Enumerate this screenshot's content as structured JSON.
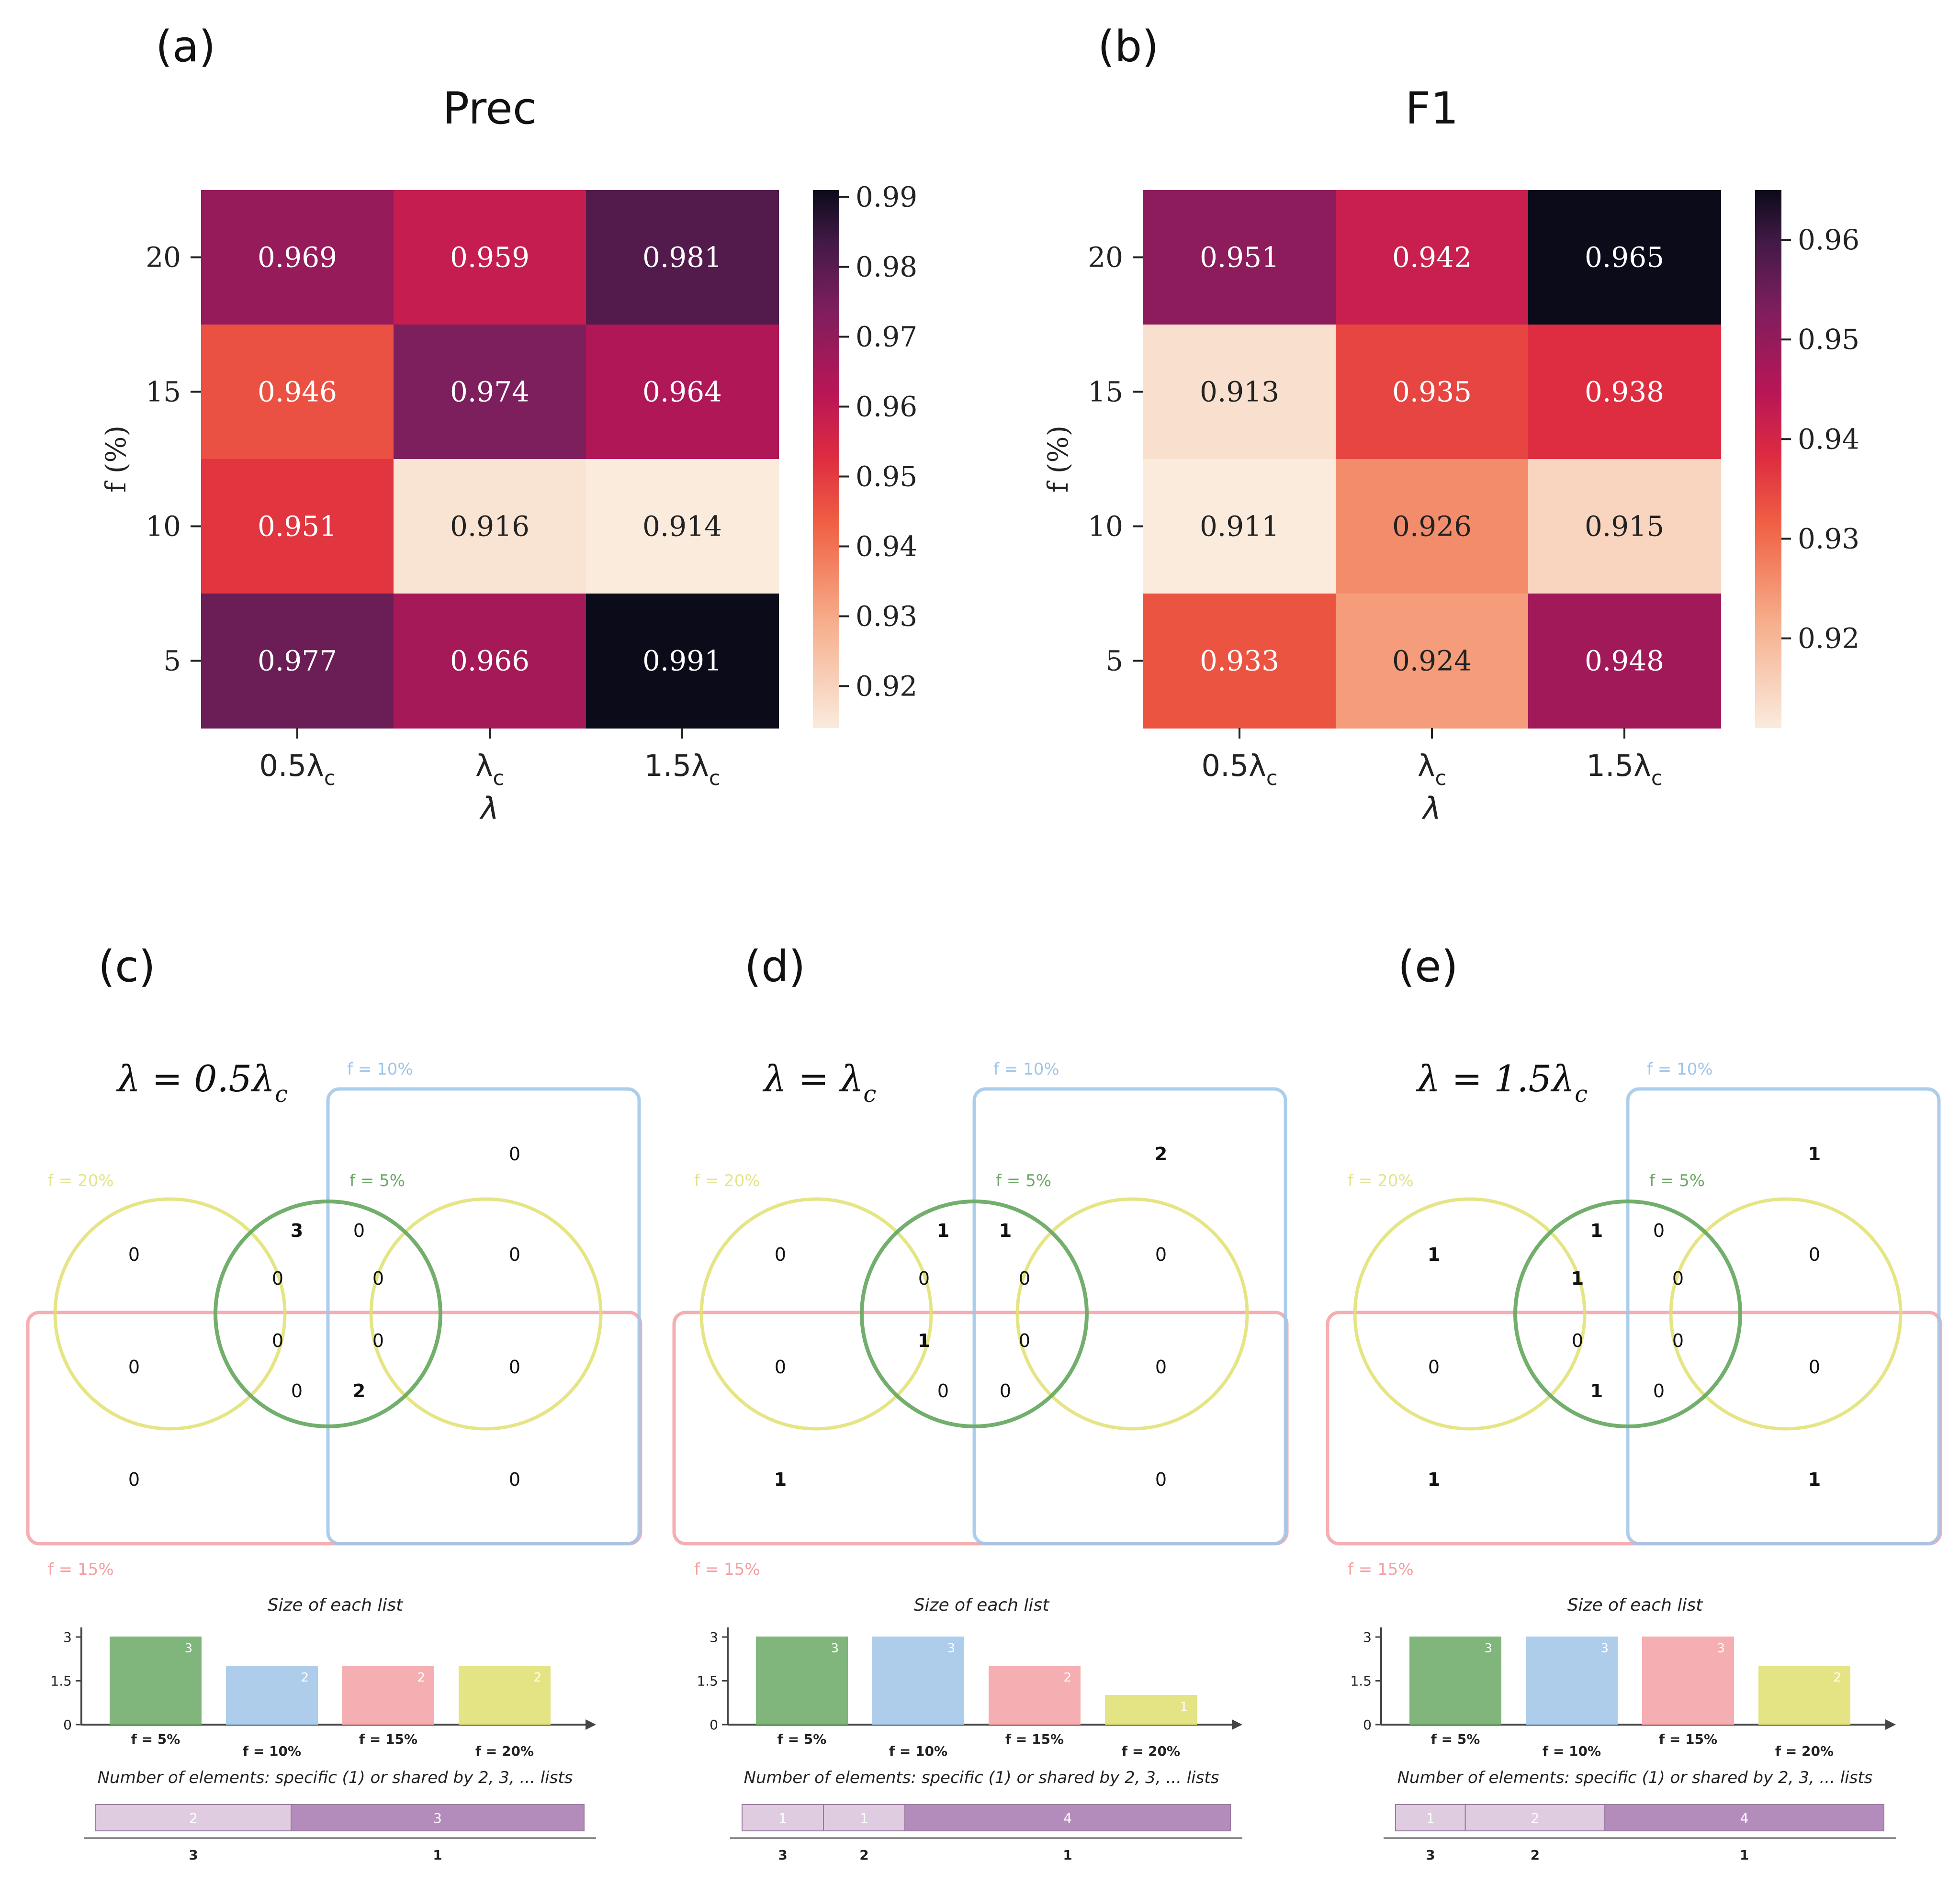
{
  "chart_data": [
    {
      "id": "a",
      "type": "heatmap",
      "panel_label": "(a)",
      "title": "Prec",
      "xlabel": "λ",
      "ylabel": "f (%)",
      "x_categories": [
        "0.5λc",
        "λc",
        "1.5λc"
      ],
      "y_categories": [
        "20",
        "15",
        "10",
        "5"
      ],
      "values": [
        [
          0.969,
          0.959,
          0.981
        ],
        [
          0.946,
          0.974,
          0.964
        ],
        [
          0.951,
          0.916,
          0.914
        ],
        [
          0.977,
          0.966,
          0.991
        ]
      ],
      "colorbar": {
        "range": [
          0.914,
          0.991
        ],
        "ticks": [
          "0.99",
          "0.98",
          "0.97",
          "0.96",
          "0.95",
          "0.94",
          "0.93",
          "0.92"
        ]
      }
    },
    {
      "id": "b",
      "type": "heatmap",
      "panel_label": "(b)",
      "title": "F1",
      "xlabel": "λ",
      "ylabel": "f (%)",
      "x_categories": [
        "0.5λc",
        "λc",
        "1.5λc"
      ],
      "y_categories": [
        "20",
        "15",
        "10",
        "5"
      ],
      "values": [
        [
          0.951,
          0.942,
          0.965
        ],
        [
          0.913,
          0.935,
          0.938
        ],
        [
          0.911,
          0.926,
          0.915
        ],
        [
          0.933,
          0.924,
          0.948
        ]
      ],
      "colorbar": {
        "range": [
          0.911,
          0.965
        ],
        "ticks": [
          "0.96",
          "0.95",
          "0.94",
          "0.93",
          "0.92"
        ]
      }
    },
    {
      "id": "c",
      "type": "venn",
      "panel_label": "(c)",
      "lambda_label": "λ = 0.5λc",
      "set_labels": {
        "f5": "f = 5%",
        "f10": "f = 10%",
        "f15": "f = 15%",
        "f20": "f = 20%"
      },
      "region_counts": [
        "0",
        "3",
        "0",
        "0",
        "0",
        "0",
        "0",
        "0",
        "0",
        "0",
        "0",
        "0",
        "2",
        "0",
        "0"
      ],
      "bar_chart": {
        "type": "bar",
        "title": "Size of each list",
        "categories": [
          "f = 5%",
          "f = 10%",
          "f = 15%",
          "f = 20%"
        ],
        "values": [
          3,
          2,
          2,
          2
        ],
        "y_ticks": [
          "3",
          "1.5",
          "0"
        ],
        "ylim": [
          0,
          3
        ]
      },
      "intersection_bar": {
        "title": "Number of elements: specific (1) or shared by 2, 3, ... lists",
        "segments": [
          {
            "shared_by": "3",
            "count": 2
          },
          {
            "shared_by": "1",
            "count": 3
          }
        ]
      }
    },
    {
      "id": "d",
      "type": "venn",
      "panel_label": "(d)",
      "lambda_label": "λ = λc",
      "set_labels": {
        "f5": "f = 5%",
        "f10": "f = 10%",
        "f15": "f = 15%",
        "f20": "f = 20%"
      },
      "region_counts": [
        "2",
        "1",
        "1",
        "0",
        "0",
        "0",
        "0",
        "0",
        "1",
        "0",
        "0",
        "0",
        "0",
        "1",
        "0"
      ],
      "bar_chart": {
        "type": "bar",
        "title": "Size of each list",
        "categories": [
          "f = 5%",
          "f = 10%",
          "f = 15%",
          "f = 20%"
        ],
        "values": [
          3,
          3,
          2,
          1
        ],
        "y_ticks": [
          "3",
          "1.5",
          "0"
        ],
        "ylim": [
          0,
          3
        ]
      },
      "intersection_bar": {
        "title": "Number of elements: specific (1) or shared by 2, 3, ... lists",
        "segments": [
          {
            "shared_by": "3",
            "count": 1
          },
          {
            "shared_by": "2",
            "count": 1
          },
          {
            "shared_by": "1",
            "count": 4
          }
        ]
      }
    },
    {
      "id": "e",
      "type": "venn",
      "panel_label": "(e)",
      "lambda_label": "λ = 1.5λc",
      "set_labels": {
        "f5": "f = 5%",
        "f10": "f = 10%",
        "f15": "f = 15%",
        "f20": "f = 20%"
      },
      "region_counts": [
        "1",
        "1",
        "0",
        "1",
        "1",
        "0",
        "0",
        "0",
        "0",
        "0",
        "0",
        "1",
        "0",
        "1",
        "1"
      ],
      "bar_chart": {
        "type": "bar",
        "title": "Size of each list",
        "categories": [
          "f = 5%",
          "f = 10%",
          "f = 15%",
          "f = 20%"
        ],
        "values": [
          3,
          3,
          3,
          2
        ],
        "y_ticks": [
          "3",
          "1.5",
          "0"
        ],
        "ylim": [
          0,
          3
        ]
      },
      "intersection_bar": {
        "title": "Number of elements: specific (1) or shared by 2, 3, ... lists",
        "segments": [
          {
            "shared_by": "3",
            "count": 1
          },
          {
            "shared_by": "2",
            "count": 2
          },
          {
            "shared_by": "1",
            "count": 4
          }
        ]
      }
    }
  ],
  "colors": {
    "heat_low": "#faebdd",
    "heat_high": "#0b0b1a",
    "f5": "#6aaa64",
    "f10": "#9fc5e8",
    "f15": "#f4a0a4",
    "f20": "#e0e070",
    "intersect_light": "#e0cce0",
    "intersect_dark": "#b48cbb"
  }
}
